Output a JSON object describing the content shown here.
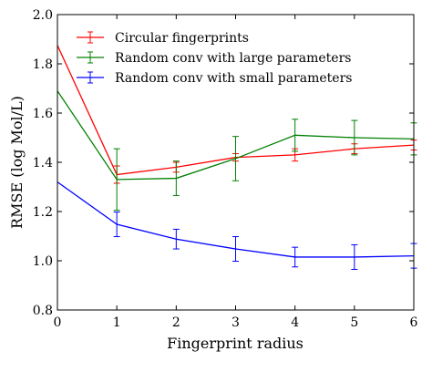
{
  "chart_data": {
    "type": "line",
    "title": "",
    "xlabel": "Fingerprint radius",
    "ylabel": "RMSE (log Mol/L)",
    "xlim": [
      0,
      6
    ],
    "ylim": [
      0.8,
      2.0
    ],
    "xticks": [
      0,
      1,
      2,
      3,
      4,
      5,
      6
    ],
    "yticks": [
      0.8,
      1.0,
      1.2,
      1.4,
      1.6,
      1.8,
      2.0
    ],
    "xtick_labels": [
      "0",
      "1",
      "2",
      "3",
      "4",
      "5",
      "6"
    ],
    "ytick_labels": [
      "0.8",
      "1.0",
      "1.2",
      "1.4",
      "1.6",
      "1.8",
      "2.0"
    ],
    "grid": false,
    "legend_position": "top-right",
    "series": [
      {
        "name": "Circular fingerprints",
        "color": "#ff0000",
        "x": [
          0,
          1,
          2,
          3,
          4,
          5,
          6
        ],
        "y": [
          1.875,
          1.35,
          1.38,
          1.42,
          1.43,
          1.455,
          1.47
        ],
        "error": [
          null,
          0.035,
          0.02,
          0.015,
          0.025,
          0.02,
          0.02
        ]
      },
      {
        "name": "Random conv with large parameters",
        "color": "#008000",
        "x": [
          0,
          1,
          2,
          3,
          4,
          5,
          6
        ],
        "y": [
          1.69,
          1.33,
          1.335,
          1.415,
          1.51,
          1.5,
          1.495
        ],
        "error": [
          null,
          0.125,
          0.07,
          0.09,
          0.065,
          0.07,
          0.065
        ]
      },
      {
        "name": "Random conv with small parameters",
        "color": "#0000ff",
        "x": [
          0,
          1,
          2,
          3,
          4,
          5,
          6
        ],
        "y": [
          1.32,
          1.148,
          1.088,
          1.048,
          1.015,
          1.015,
          1.02
        ],
        "error": [
          null,
          0.05,
          0.04,
          0.05,
          0.04,
          0.05,
          0.05
        ]
      }
    ]
  }
}
